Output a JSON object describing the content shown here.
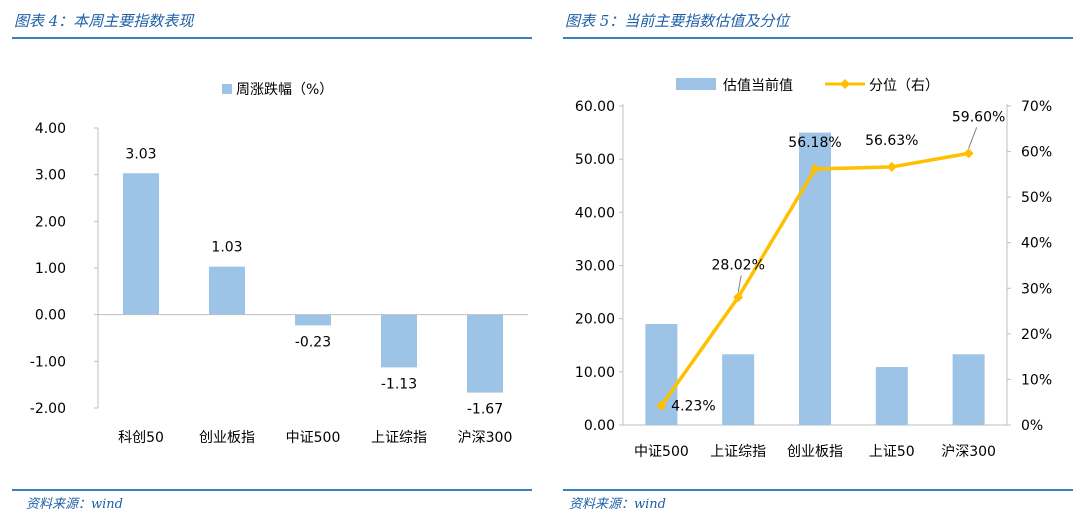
{
  "left": {
    "title": "图表 4：本周主要指数表现",
    "source": "资料来源：wind",
    "chart_data": {
      "type": "bar",
      "legend": "周涨跌幅（%）",
      "categories": [
        "科创50",
        "创业板指",
        "中证500",
        "上证综指",
        "沪深300"
      ],
      "series": [
        {
          "name": "周涨跌幅（%）",
          "values": [
            3.03,
            1.03,
            -0.23,
            -1.13,
            -1.67
          ],
          "color": "#9dc3e6"
        }
      ],
      "value_labels": [
        "3.03",
        "1.03",
        "-0.23",
        "-1.13",
        "-1.67"
      ],
      "yticks": [
        "-2.00",
        "-1.00",
        "0.00",
        "1.00",
        "2.00",
        "3.00",
        "4.00"
      ],
      "ylim": [
        -2,
        4
      ],
      "legend_position": "top"
    }
  },
  "right": {
    "title": "图表 5：当前主要指数估值及分位",
    "source": "资料来源：wind",
    "chart_data": {
      "type": "bar",
      "categories": [
        "中证500",
        "上证综指",
        "创业板指",
        "上证50",
        "沪深300"
      ],
      "series": [
        {
          "name": "估值当前值",
          "type": "bar",
          "axis": "left",
          "values": [
            19.0,
            13.3,
            55.0,
            10.9,
            13.3
          ],
          "color": "#9dc3e6"
        },
        {
          "name": "分位（右）",
          "type": "line",
          "axis": "right",
          "values": [
            4.23,
            28.02,
            56.18,
            56.63,
            59.6
          ],
          "color": "#ffc000"
        }
      ],
      "line_labels": [
        "4.23%",
        "28.02%",
        "56.18%",
        "56.63%",
        "59.60%"
      ],
      "yticks_left": [
        "0.00",
        "10.00",
        "20.00",
        "30.00",
        "40.00",
        "50.00",
        "60.00"
      ],
      "yticks_right": [
        "0%",
        "10%",
        "20%",
        "30%",
        "40%",
        "50%",
        "60%",
        "70%"
      ],
      "ylim_left": [
        0,
        60
      ],
      "ylim_right": [
        0,
        70
      ],
      "legend_position": "top"
    }
  }
}
